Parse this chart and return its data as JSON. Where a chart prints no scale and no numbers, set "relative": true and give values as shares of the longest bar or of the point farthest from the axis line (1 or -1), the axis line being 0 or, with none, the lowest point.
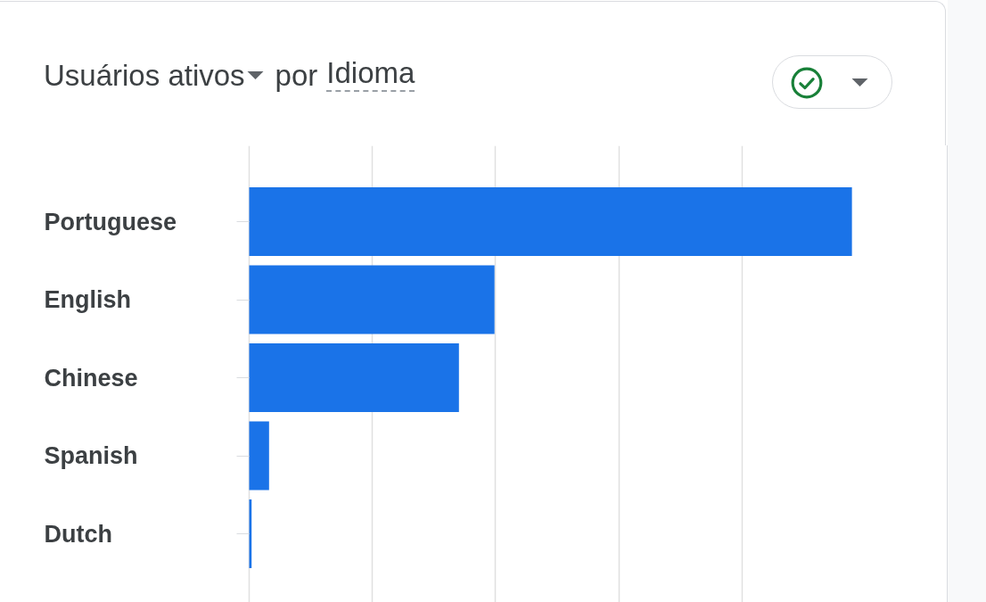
{
  "chart_data": {
    "type": "bar",
    "orientation": "horizontal",
    "relative": true,
    "title": "Usuários ativos por Idioma",
    "categories": [
      "Portuguese",
      "English",
      "Chinese",
      "Spanish",
      "Dutch"
    ],
    "values": [
      1,
      0.407,
      0.348,
      0.033,
      0.004
    ],
    "color": "#1a73e8",
    "grid": "x"
  }
}
